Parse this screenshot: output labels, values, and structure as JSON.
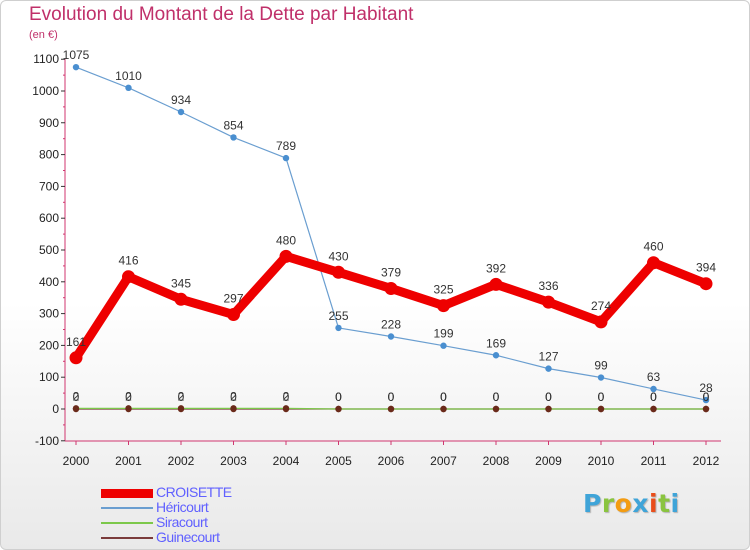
{
  "title": "Evolution du Montant de la Dette par Habitant",
  "unit": "(en €)",
  "logo": {
    "text": "Proxiti",
    "letter_colors": [
      "#3fa4d8",
      "#8ac43f",
      "#f39c12",
      "#3fa4d8",
      "#e94e1b",
      "#8ac43f",
      "#3fa4d8"
    ]
  },
  "chart_data": {
    "type": "line",
    "title": "Evolution du Montant de la Dette par Habitant",
    "ylabel": "(en €)",
    "xlabel": "",
    "ylim": [
      -100,
      1100
    ],
    "y_ticks": [
      -100,
      0,
      100,
      200,
      300,
      400,
      500,
      600,
      700,
      800,
      900,
      1000,
      1100
    ],
    "categories": [
      "2000",
      "2001",
      "2002",
      "2003",
      "2004",
      "2005",
      "2006",
      "2007",
      "2008",
      "2009",
      "2010",
      "2011",
      "2012"
    ],
    "grid": false,
    "legend_position": "bottom-left",
    "series": [
      {
        "name": "CROISETTE",
        "color": "#ee0000",
        "values": [
          161,
          416,
          345,
          297,
          480,
          430,
          379,
          325,
          392,
          336,
          274,
          460,
          394
        ]
      },
      {
        "name": "Héricourt",
        "color": "#6a9ed0",
        "values": [
          1075,
          1010,
          934,
          854,
          789,
          255,
          228,
          199,
          169,
          127,
          99,
          63,
          28
        ]
      },
      {
        "name": "Siracourt",
        "color": "#7cc84a",
        "values": [
          2,
          2,
          2,
          2,
          2,
          0,
          0,
          0,
          0,
          0,
          0,
          0,
          0
        ]
      },
      {
        "name": "Guinecourt",
        "color": "#7a3b3b",
        "values": [
          0,
          0,
          0,
          0,
          0,
          0,
          0,
          0,
          0,
          0,
          0,
          0,
          0
        ]
      }
    ]
  }
}
